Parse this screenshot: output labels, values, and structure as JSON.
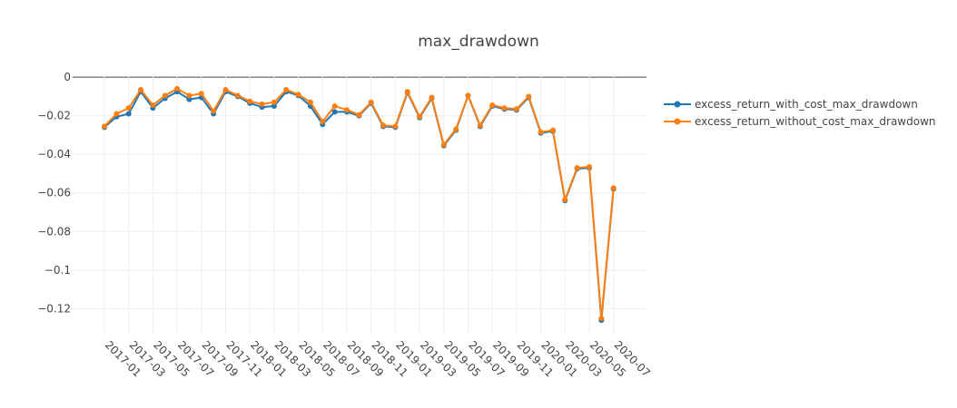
{
  "chart_data": {
    "type": "line",
    "title": "max_drawdown",
    "xlabel": "",
    "ylabel": "",
    "x": [
      "2017-01",
      "2017-02",
      "2017-03",
      "2017-04",
      "2017-05",
      "2017-06",
      "2017-07",
      "2017-08",
      "2017-09",
      "2017-10",
      "2017-11",
      "2017-12",
      "2018-01",
      "2018-02",
      "2018-03",
      "2018-04",
      "2018-05",
      "2018-06",
      "2018-07",
      "2018-08",
      "2018-09",
      "2018-10",
      "2018-11",
      "2018-12",
      "2019-01",
      "2019-02",
      "2019-03",
      "2019-04",
      "2019-05",
      "2019-06",
      "2019-07",
      "2019-08",
      "2019-09",
      "2019-10",
      "2019-11",
      "2019-12",
      "2020-01",
      "2020-02",
      "2020-03",
      "2020-04",
      "2020-05",
      "2020-06",
      "2020-07"
    ],
    "x_tick_labels": [
      "2017-01",
      "2017-03",
      "2017-05",
      "2017-07",
      "2017-09",
      "2017-11",
      "2018-01",
      "2018-03",
      "2018-05",
      "2018-07",
      "2018-09",
      "2018-11",
      "2019-01",
      "2019-03",
      "2019-05",
      "2019-07",
      "2019-09",
      "2019-11",
      "2020-01",
      "2020-03",
      "2020-05",
      "2020-07"
    ],
    "y_ticks": [
      0,
      -0.02,
      -0.04,
      -0.06,
      -0.08,
      -0.1,
      -0.12
    ],
    "y_tick_labels": [
      "0",
      "−0.02",
      "−0.04",
      "−0.06",
      "−0.08",
      "−0.1",
      "−0.12"
    ],
    "ylim": [
      -0.133,
      0.001
    ],
    "grid": true,
    "legend_position": "top-right",
    "series": [
      {
        "name": "excess_return_with_cost_max_drawdown",
        "color": "#1f77b4",
        "values": [
          -0.026,
          -0.0205,
          -0.019,
          -0.0075,
          -0.016,
          -0.011,
          -0.0075,
          -0.0115,
          -0.0105,
          -0.019,
          -0.0075,
          -0.01,
          -0.0135,
          -0.0155,
          -0.015,
          -0.0075,
          -0.0095,
          -0.015,
          -0.0245,
          -0.018,
          -0.018,
          -0.02,
          -0.0135,
          -0.0255,
          -0.026,
          -0.008,
          -0.021,
          -0.011,
          -0.0355,
          -0.0275,
          -0.0095,
          -0.0255,
          -0.015,
          -0.0165,
          -0.017,
          -0.0105,
          -0.029,
          -0.028,
          -0.064,
          -0.0475,
          -0.047,
          -0.126,
          -0.058
        ]
      },
      {
        "name": "excess_return_without_cost_max_drawdown",
        "color": "#ff7f0e",
        "values": [
          -0.0255,
          -0.019,
          -0.016,
          -0.0065,
          -0.0145,
          -0.0095,
          -0.006,
          -0.0095,
          -0.0085,
          -0.0175,
          -0.0065,
          -0.0095,
          -0.0125,
          -0.014,
          -0.013,
          -0.0065,
          -0.009,
          -0.013,
          -0.023,
          -0.015,
          -0.017,
          -0.0195,
          -0.013,
          -0.025,
          -0.0255,
          -0.0075,
          -0.0205,
          -0.0105,
          -0.035,
          -0.027,
          -0.0095,
          -0.025,
          -0.0145,
          -0.016,
          -0.0165,
          -0.01,
          -0.0285,
          -0.0275,
          -0.0635,
          -0.047,
          -0.0465,
          -0.125,
          -0.0575
        ]
      }
    ]
  }
}
